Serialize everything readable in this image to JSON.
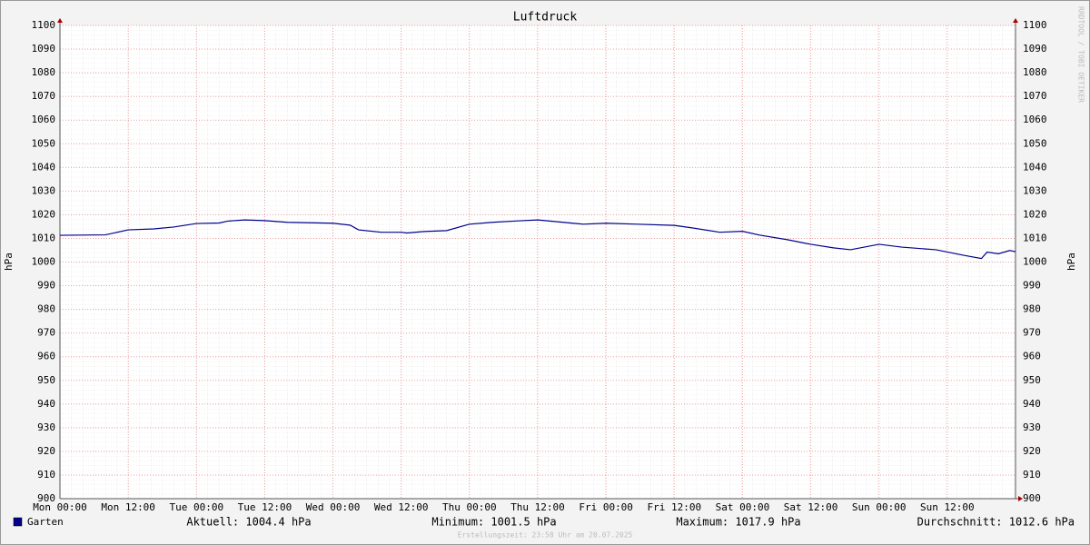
{
  "chart_data": {
    "type": "line",
    "title": "Luftdruck",
    "ylabel": "hPa",
    "watermark": "RRDTOOL / TOBI OETIKER",
    "footer": "Erstellungszeit: 23:58 Uhr am 20.07.2025",
    "x": [
      0,
      8,
      12,
      16.5,
      20,
      24,
      28,
      29.5,
      32.5,
      36,
      40,
      48,
      51,
      52.5,
      56.5,
      60,
      61,
      64,
      68,
      72,
      76,
      80.5,
      84,
      88.5,
      92,
      96,
      101.5,
      108,
      111,
      116,
      120,
      123,
      128,
      132,
      136,
      139,
      144,
      148,
      154,
      159,
      162,
      163,
      165,
      167,
      168
    ],
    "series": [
      {
        "name": "Garten",
        "color": "#00008b",
        "values": [
          1011.3,
          1011.5,
          1013.6,
          1014.0,
          1014.8,
          1016.3,
          1016.5,
          1017.3,
          1017.8,
          1017.5,
          1016.8,
          1016.4,
          1015.6,
          1013.6,
          1012.6,
          1012.6,
          1012.3,
          1012.9,
          1013.3,
          1016.0,
          1016.8,
          1017.4,
          1017.8,
          1016.8,
          1016.0,
          1016.4,
          1016.0,
          1015.5,
          1014.5,
          1012.6,
          1013.0,
          1011.4,
          1009.4,
          1007.5,
          1006.0,
          1005.2,
          1007.5,
          1006.3,
          1005.2,
          1002.8,
          1001.5,
          1004.2,
          1003.5,
          1004.9,
          1004.4
        ]
      }
    ],
    "xlim": [
      0,
      168
    ],
    "xticks": [
      {
        "value": 0,
        "label": "Mon 00:00"
      },
      {
        "value": 12,
        "label": "Mon 12:00"
      },
      {
        "value": 24,
        "label": "Tue 00:00"
      },
      {
        "value": 36,
        "label": "Tue 12:00"
      },
      {
        "value": 48,
        "label": "Wed 00:00"
      },
      {
        "value": 60,
        "label": "Wed 12:00"
      },
      {
        "value": 72,
        "label": "Thu 00:00"
      },
      {
        "value": 84,
        "label": "Thu 12:00"
      },
      {
        "value": 96,
        "label": "Fri 00:00"
      },
      {
        "value": 108,
        "label": "Fri 12:00"
      },
      {
        "value": 120,
        "label": "Sat 00:00"
      },
      {
        "value": 132,
        "label": "Sat 12:00"
      },
      {
        "value": 144,
        "label": "Sun 00:00"
      },
      {
        "value": 156,
        "label": "Sun 12:00"
      }
    ],
    "ylim": [
      900,
      1100
    ],
    "yticks": [
      900,
      910,
      920,
      930,
      940,
      950,
      960,
      970,
      980,
      990,
      1000,
      1010,
      1020,
      1030,
      1040,
      1050,
      1060,
      1070,
      1080,
      1090,
      1100
    ],
    "grid": true,
    "stats": [
      "Aktuell: 1004.4 hPa",
      "Minimum: 1001.5 hPa",
      "Maximum: 1017.9 hPa",
      "Durchschnitt: 1012.6 hPa"
    ]
  }
}
